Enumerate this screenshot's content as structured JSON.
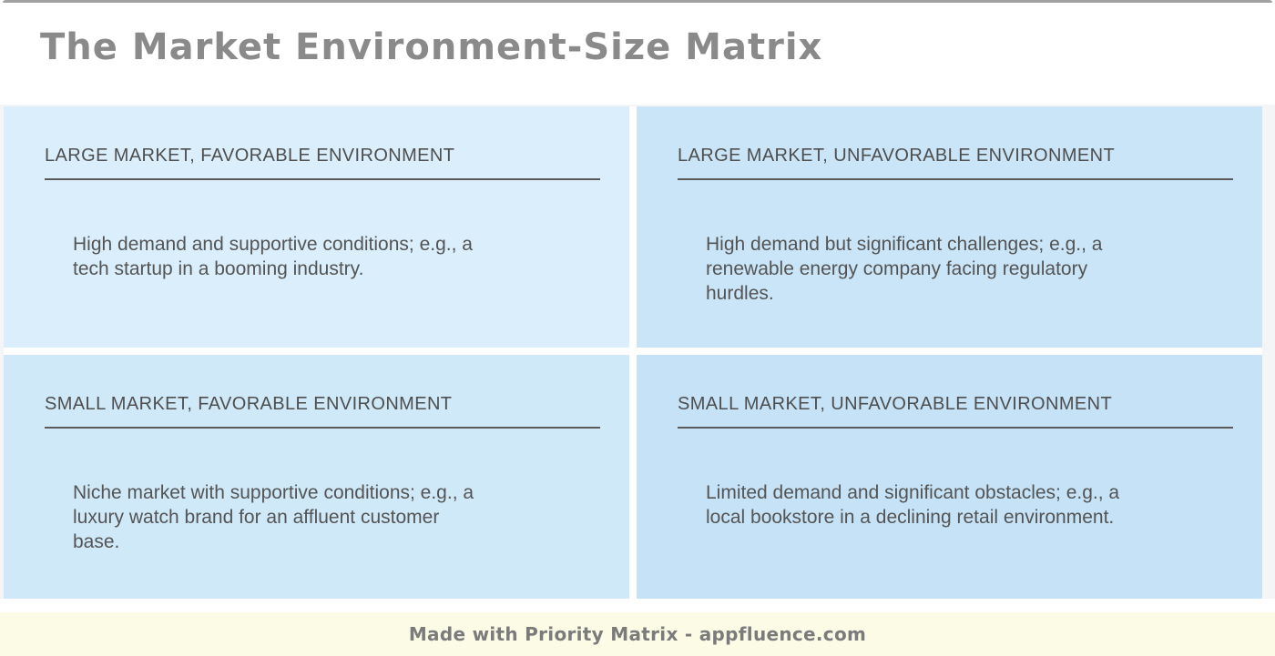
{
  "page": {
    "title": "The Market Environment-Size Matrix"
  },
  "quadrants": [
    {
      "id": "large-market-favorable",
      "heading": "LARGE MARKET, FAVORABLE ENVIRONMENT",
      "body": "High demand and supportive conditions; e.g., a\ntech startup in a booming industry.",
      "bg": "#daeefb"
    },
    {
      "id": "large-market-unfavorable",
      "heading": "LARGE MARKET, UNFAVORABLE ENVIRONMENT",
      "body": "High demand but significant challenges; e.g., a\nrenewable energy company facing regulatory\nhurdles.",
      "bg": "#cae5f7"
    },
    {
      "id": "small-market-favorable",
      "heading": "SMALL MARKET, FAVORABLE ENVIRONMENT",
      "body": "Niche market with supportive conditions; e.g., a\nluxury watch brand for an affluent customer\nbase.",
      "bg": "#cfe9f9"
    },
    {
      "id": "small-market-unfavorable",
      "heading": "SMALL MARKET, UNFAVORABLE ENVIRONMENT",
      "body": "Limited demand and significant obstacles; e.g., a\nlocal bookstore in a declining retail environment.",
      "bg": "#c5e2f6"
    }
  ],
  "footer": {
    "text": "Made with Priority Matrix - appfluence.com",
    "bg": "#fbfbe6"
  },
  "colors": {
    "title_text": "#8a8a8a",
    "quadrant_heading_text": "#4e4e4e",
    "quadrant_body_text": "#545454",
    "heading_underline": "#5a5a5a",
    "page_margin": "#f3f5f7",
    "top_rule": "#a0a0a0",
    "gap_white": "#ffffff"
  }
}
